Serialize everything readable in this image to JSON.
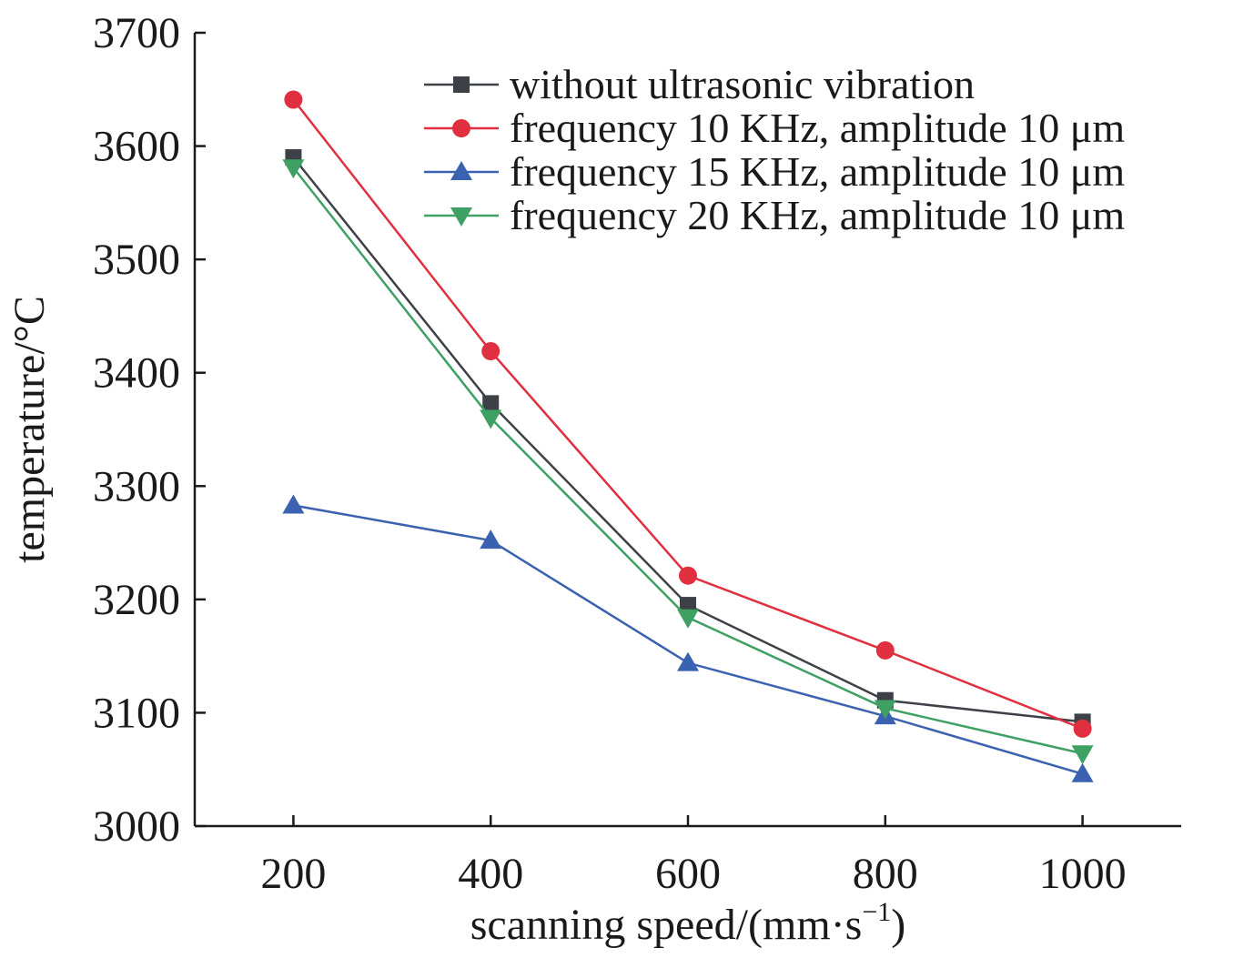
{
  "chart_data": {
    "type": "line",
    "xlabel": "scanning speed/(mm·s",
    "xlabel_superscript": "−1",
    "xlabel_suffix": ")",
    "ylabel": "temperature/°C",
    "x": [
      200,
      400,
      600,
      800,
      1000
    ],
    "x_ticks": [
      "200",
      "400",
      "600",
      "800",
      "1000"
    ],
    "xlim": [
      100,
      1100
    ],
    "ylim": [
      3000,
      3700
    ],
    "y_ticks": [
      "3000",
      "3100",
      "3200",
      "3300",
      "3400",
      "3500",
      "3600",
      "3700"
    ],
    "grid": false,
    "legend_position": "top-right",
    "series": [
      {
        "name": "without ultrasonic vibration",
        "marker": "square",
        "color": "#3d4147",
        "values": [
          3590,
          3373,
          3195,
          3111,
          3092
        ]
      },
      {
        "name": "frequency 10 KHz, amplitude 10 μm",
        "marker": "circle",
        "color": "#e0303f",
        "values": [
          3641,
          3419,
          3221,
          3155,
          3086
        ]
      },
      {
        "name": "frequency 15 KHz, amplitude 10 μm",
        "marker": "triangle-up",
        "color": "#3a62b0",
        "values": [
          3283,
          3252,
          3144,
          3097,
          3046
        ]
      },
      {
        "name": "frequency 20 KHz, amplitude 10 μm",
        "marker": "triangle-down",
        "color": "#3fa064",
        "values": [
          3581,
          3360,
          3184,
          3104,
          3064
        ]
      }
    ]
  }
}
